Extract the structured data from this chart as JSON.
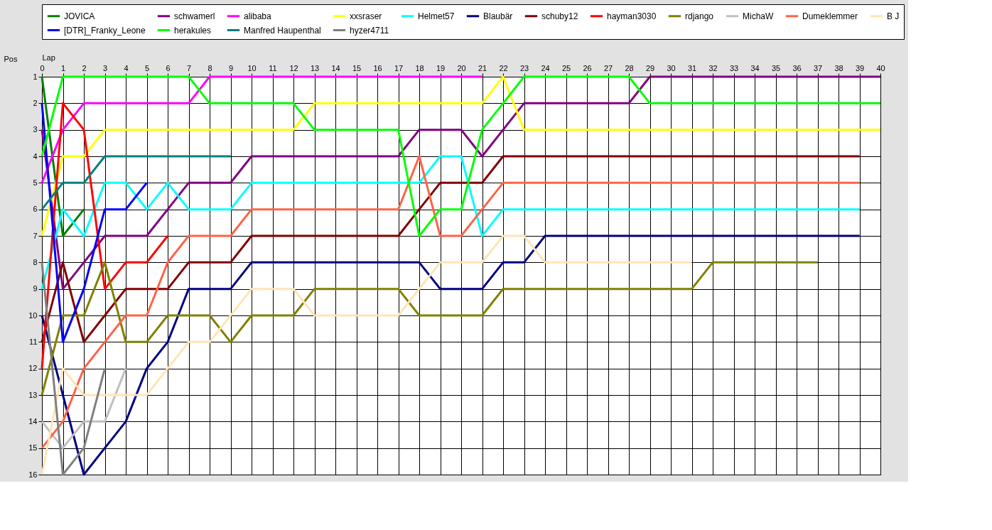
{
  "chart_data": {
    "type": "line",
    "xlabel": "Lap",
    "ylabel": "Pos",
    "x": [
      0,
      1,
      2,
      3,
      4,
      5,
      6,
      7,
      8,
      9,
      10,
      11,
      12,
      13,
      14,
      15,
      16,
      17,
      18,
      19,
      20,
      21,
      22,
      23,
      24,
      25,
      26,
      27,
      28,
      29,
      30,
      31,
      32,
      33,
      34,
      35,
      36,
      37,
      38,
      39,
      40
    ],
    "xlim": [
      0,
      40
    ],
    "xticks": [
      0,
      1,
      2,
      3,
      4,
      5,
      6,
      7,
      8,
      9,
      10,
      11,
      12,
      13,
      14,
      15,
      16,
      17,
      18,
      19,
      20,
      21,
      22,
      23,
      24,
      25,
      26,
      27,
      28,
      29,
      30,
      31,
      32,
      33,
      34,
      35,
      36,
      37,
      38,
      39,
      40
    ],
    "ylim": [
      16,
      1
    ],
    "yticks": [
      1,
      2,
      3,
      4,
      5,
      6,
      7,
      8,
      9,
      10,
      11,
      12,
      13,
      14,
      15,
      16
    ],
    "grid": true,
    "legend": "top",
    "marker": "none",
    "line_style": "solid",
    "series": [
      {
        "name": "JOVICA",
        "color": "#008000",
        "values": [
          1,
          7,
          6,
          null,
          null,
          null,
          null,
          null,
          null,
          null,
          null,
          null,
          null,
          null,
          null,
          null,
          null,
          null,
          null,
          null,
          null,
          null,
          null,
          null,
          null,
          null,
          null,
          null,
          null,
          null,
          null,
          null,
          null,
          null,
          null,
          null,
          null,
          null,
          null,
          null,
          null
        ]
      },
      {
        "name": "schwamerl",
        "color": "#800080",
        "values": [
          3,
          9,
          8,
          7,
          7,
          7,
          6,
          5,
          5,
          5,
          4,
          4,
          4,
          4,
          4,
          4,
          4,
          4,
          3,
          3,
          3,
          4,
          3,
          2,
          2,
          2,
          2,
          2,
          2,
          1,
          1,
          1,
          1,
          1,
          1,
          1,
          1,
          1,
          1,
          1,
          1
        ]
      },
      {
        "name": "alibaba",
        "color": "#ff00ff",
        "values": [
          5,
          3,
          2,
          2,
          2,
          2,
          2,
          2,
          1,
          1,
          1,
          1,
          1,
          1,
          1,
          1,
          1,
          1,
          1,
          1,
          1,
          1,
          null,
          null,
          null,
          null,
          null,
          null,
          null,
          null,
          null,
          null,
          null,
          null,
          null,
          null,
          null,
          null,
          null,
          null,
          null
        ]
      },
      {
        "name": "xxsraser",
        "color": "#ffff00",
        "values": [
          7,
          4,
          4,
          3,
          3,
          3,
          3,
          3,
          3,
          3,
          3,
          3,
          3,
          2,
          2,
          2,
          2,
          2,
          2,
          2,
          2,
          2,
          1,
          3,
          3,
          3,
          3,
          3,
          3,
          3,
          3,
          3,
          3,
          3,
          3,
          3,
          3,
          3,
          3,
          3,
          3
        ]
      },
      {
        "name": "Helmet57",
        "color": "#00ffff",
        "values": [
          9,
          6,
          7,
          5,
          5,
          6,
          5,
          6,
          6,
          6,
          5,
          5,
          5,
          5,
          5,
          5,
          5,
          5,
          5,
          4,
          4,
          7,
          6,
          6,
          6,
          6,
          6,
          6,
          6,
          6,
          6,
          6,
          6,
          6,
          6,
          6,
          6,
          6,
          6,
          6,
          null
        ]
      },
      {
        "name": "Blaubär",
        "color": "#000080",
        "values": [
          10,
          13,
          16,
          15,
          14,
          12,
          11,
          9,
          9,
          9,
          8,
          8,
          8,
          8,
          8,
          8,
          8,
          8,
          8,
          9,
          9,
          9,
          8,
          8,
          7,
          7,
          7,
          7,
          7,
          7,
          7,
          7,
          7,
          7,
          7,
          7,
          7,
          7,
          7,
          7,
          null
        ]
      },
      {
        "name": "schuby12",
        "color": "#800000",
        "values": [
          11,
          8,
          11,
          10,
          9,
          9,
          9,
          8,
          8,
          8,
          7,
          7,
          7,
          7,
          7,
          7,
          7,
          7,
          6,
          5,
          5,
          5,
          4,
          4,
          4,
          4,
          4,
          4,
          4,
          4,
          4,
          4,
          4,
          4,
          4,
          4,
          4,
          4,
          4,
          4,
          null
        ]
      },
      {
        "name": "hayman3030",
        "color": "#ff0000",
        "values": [
          12,
          2,
          3,
          9,
          8,
          8,
          7,
          null,
          null,
          null,
          null,
          null,
          null,
          null,
          null,
          null,
          null,
          null,
          null,
          null,
          null,
          null,
          null,
          null,
          null,
          null,
          null,
          null,
          null,
          null,
          null,
          null,
          null,
          null,
          null,
          null,
          null,
          null,
          null,
          null,
          null
        ]
      },
      {
        "name": "rdjango",
        "color": "#808000",
        "values": [
          13,
          10,
          10,
          8,
          11,
          11,
          10,
          10,
          10,
          11,
          10,
          10,
          10,
          9,
          9,
          9,
          9,
          9,
          10,
          10,
          10,
          10,
          9,
          9,
          9,
          9,
          9,
          9,
          9,
          9,
          9,
          9,
          8,
          8,
          8,
          8,
          8,
          8,
          null,
          null,
          null
        ]
      },
      {
        "name": "MichaW",
        "color": "#c0c0c0",
        "values": [
          14,
          15,
          14,
          14,
          12,
          null,
          null,
          null,
          null,
          null,
          null,
          null,
          null,
          null,
          null,
          null,
          null,
          null,
          null,
          null,
          null,
          null,
          null,
          null,
          null,
          null,
          null,
          null,
          null,
          null,
          null,
          null,
          null,
          null,
          null,
          null,
          null,
          null,
          null,
          null,
          null
        ]
      },
      {
        "name": "Dumeklemmer",
        "color": "#ff6347",
        "values": [
          15,
          14,
          12,
          11,
          10,
          10,
          8,
          7,
          7,
          7,
          6,
          6,
          6,
          6,
          6,
          6,
          6,
          6,
          4,
          7,
          7,
          6,
          5,
          5,
          5,
          5,
          5,
          5,
          5,
          5,
          5,
          5,
          5,
          5,
          5,
          5,
          5,
          5,
          5,
          5,
          null
        ]
      },
      {
        "name": "B J",
        "color": "#ffe4b5",
        "values": [
          16,
          12,
          13,
          13,
          13,
          13,
          12,
          11,
          11,
          10,
          9,
          9,
          9,
          10,
          10,
          10,
          10,
          10,
          9,
          8,
          8,
          8,
          7,
          7,
          8,
          8,
          8,
          8,
          8,
          8,
          8,
          8,
          null,
          null,
          null,
          null,
          null,
          null,
          null,
          null,
          null
        ]
      },
      {
        "name": "[DTR]_Franky_Leone",
        "color": "#0000ff",
        "values": [
          2,
          11,
          9,
          6,
          6,
          5,
          null,
          null,
          null,
          null,
          null,
          null,
          null,
          null,
          null,
          null,
          null,
          null,
          null,
          null,
          null,
          null,
          null,
          null,
          null,
          null,
          null,
          null,
          null,
          null,
          null,
          null,
          null,
          null,
          null,
          null,
          null,
          null,
          null,
          null,
          null
        ]
      },
      {
        "name": "herakules",
        "color": "#00ff00",
        "values": [
          4,
          1,
          1,
          1,
          1,
          1,
          1,
          1,
          2,
          2,
          2,
          2,
          2,
          3,
          3,
          3,
          3,
          3,
          7,
          6,
          6,
          3,
          2,
          1,
          1,
          1,
          1,
          1,
          1,
          2,
          2,
          2,
          2,
          2,
          2,
          2,
          2,
          2,
          2,
          2,
          2
        ]
      },
      {
        "name": "Manfred Haupenthal",
        "color": "#008080",
        "values": [
          6,
          5,
          5,
          4,
          4,
          4,
          4,
          4,
          4,
          4,
          null,
          null,
          null,
          null,
          null,
          null,
          null,
          null,
          null,
          null,
          null,
          null,
          null,
          null,
          null,
          null,
          null,
          null,
          null,
          null,
          null,
          null,
          null,
          null,
          null,
          null,
          null,
          null,
          null,
          null,
          null
        ]
      },
      {
        "name": "hyzer4711",
        "color": "#808080",
        "values": [
          8,
          16,
          15,
          12,
          null,
          null,
          null,
          null,
          null,
          null,
          null,
          null,
          null,
          null,
          null,
          null,
          null,
          null,
          null,
          null,
          null,
          null,
          null,
          null,
          null,
          null,
          null,
          null,
          null,
          null,
          null,
          null,
          null,
          null,
          null,
          null,
          null,
          null,
          null,
          null,
          null
        ]
      }
    ]
  }
}
